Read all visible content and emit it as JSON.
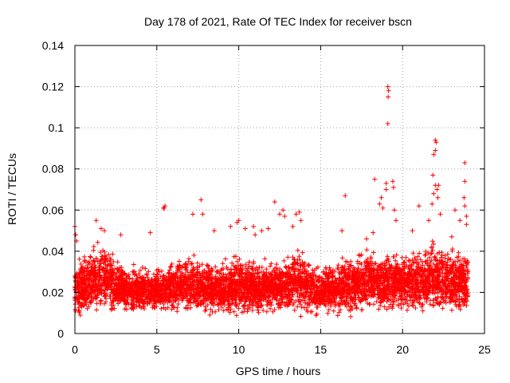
{
  "chart_data": {
    "type": "scatter",
    "title": "Day 178 of 2021, Rate Of TEC Index for receiver bscn",
    "xlabel": "GPS time / hours",
    "ylabel": "ROTI / TECUs",
    "xlim": [
      0,
      25
    ],
    "ylim": [
      0,
      0.14
    ],
    "grid": true,
    "marker": "+",
    "x_ticks": [
      {
        "value": 0,
        "label": "0"
      },
      {
        "value": 5,
        "label": "5"
      },
      {
        "value": 10,
        "label": "10"
      },
      {
        "value": 15,
        "label": "15"
      },
      {
        "value": 20,
        "label": "20"
      },
      {
        "value": 25,
        "label": "25"
      }
    ],
    "y_ticks": [
      {
        "value": 0,
        "label": "0"
      },
      {
        "value": 0.02,
        "label": "0.02"
      },
      {
        "value": 0.04,
        "label": "0.04"
      },
      {
        "value": 0.06,
        "label": "0.06"
      },
      {
        "value": 0.08,
        "label": "0.08"
      },
      {
        "value": 0.1,
        "label": "0.1"
      },
      {
        "value": 0.12,
        "label": "0.12"
      },
      {
        "value": 0.14,
        "label": "0.14"
      }
    ],
    "series": [
      {
        "name": "ROTI",
        "color": "#ff0000",
        "x_range": [
          0,
          24
        ],
        "band_profile": [
          {
            "x": 0.0,
            "low": 0.006,
            "high": 0.036
          },
          {
            "x": 1.0,
            "low": 0.007,
            "high": 0.044
          },
          {
            "x": 1.7,
            "low": 0.007,
            "high": 0.048
          },
          {
            "x": 3.0,
            "low": 0.008,
            "high": 0.034
          },
          {
            "x": 5.0,
            "low": 0.008,
            "high": 0.034
          },
          {
            "x": 7.0,
            "low": 0.008,
            "high": 0.04
          },
          {
            "x": 8.5,
            "low": 0.008,
            "high": 0.036
          },
          {
            "x": 10.0,
            "low": 0.007,
            "high": 0.04
          },
          {
            "x": 12.0,
            "low": 0.008,
            "high": 0.036
          },
          {
            "x": 13.7,
            "low": 0.007,
            "high": 0.044
          },
          {
            "x": 15.0,
            "low": 0.007,
            "high": 0.034
          },
          {
            "x": 16.5,
            "low": 0.007,
            "high": 0.04
          },
          {
            "x": 18.5,
            "low": 0.008,
            "high": 0.044
          },
          {
            "x": 20.0,
            "low": 0.008,
            "high": 0.04
          },
          {
            "x": 22.0,
            "low": 0.007,
            "high": 0.048
          },
          {
            "x": 24.0,
            "low": 0.006,
            "high": 0.042
          }
        ],
        "outliers": [
          {
            "x": 0.0,
            "y": 0.052
          },
          {
            "x": 0.05,
            "y": 0.048
          },
          {
            "x": 0.1,
            "y": 0.045
          },
          {
            "x": 1.3,
            "y": 0.055
          },
          {
            "x": 1.6,
            "y": 0.051
          },
          {
            "x": 1.8,
            "y": 0.05
          },
          {
            "x": 2.8,
            "y": 0.048
          },
          {
            "x": 4.6,
            "y": 0.049
          },
          {
            "x": 5.4,
            "y": 0.061
          },
          {
            "x": 5.5,
            "y": 0.062
          },
          {
            "x": 5.45,
            "y": 0.061
          },
          {
            "x": 7.2,
            "y": 0.058
          },
          {
            "x": 7.7,
            "y": 0.065
          },
          {
            "x": 7.8,
            "y": 0.058
          },
          {
            "x": 8.5,
            "y": 0.05
          },
          {
            "x": 9.5,
            "y": 0.052
          },
          {
            "x": 9.9,
            "y": 0.054
          },
          {
            "x": 10.0,
            "y": 0.055
          },
          {
            "x": 10.4,
            "y": 0.051
          },
          {
            "x": 10.9,
            "y": 0.052
          },
          {
            "x": 11.0,
            "y": 0.048
          },
          {
            "x": 11.4,
            "y": 0.05
          },
          {
            "x": 11.8,
            "y": 0.051
          },
          {
            "x": 12.2,
            "y": 0.064
          },
          {
            "x": 12.5,
            "y": 0.058
          },
          {
            "x": 12.7,
            "y": 0.06
          },
          {
            "x": 12.8,
            "y": 0.057
          },
          {
            "x": 13.5,
            "y": 0.058
          },
          {
            "x": 13.7,
            "y": 0.059
          },
          {
            "x": 13.3,
            "y": 0.052
          },
          {
            "x": 13.8,
            "y": 0.055
          },
          {
            "x": 16.3,
            "y": 0.05
          },
          {
            "x": 16.5,
            "y": 0.067
          },
          {
            "x": 17.8,
            "y": 0.046
          },
          {
            "x": 18.2,
            "y": 0.049
          },
          {
            "x": 18.3,
            "y": 0.075
          },
          {
            "x": 18.6,
            "y": 0.063
          },
          {
            "x": 18.7,
            "y": 0.066
          },
          {
            "x": 18.8,
            "y": 0.061
          },
          {
            "x": 19.0,
            "y": 0.073
          },
          {
            "x": 19.0,
            "y": 0.07
          },
          {
            "x": 19.1,
            "y": 0.12
          },
          {
            "x": 19.15,
            "y": 0.118
          },
          {
            "x": 19.12,
            "y": 0.115
          },
          {
            "x": 19.1,
            "y": 0.102
          },
          {
            "x": 19.4,
            "y": 0.074
          },
          {
            "x": 19.45,
            "y": 0.071
          },
          {
            "x": 19.5,
            "y": 0.06
          },
          {
            "x": 19.6,
            "y": 0.055
          },
          {
            "x": 20.6,
            "y": 0.05
          },
          {
            "x": 21.0,
            "y": 0.062
          },
          {
            "x": 21.6,
            "y": 0.055
          },
          {
            "x": 21.8,
            "y": 0.063
          },
          {
            "x": 21.85,
            "y": 0.077
          },
          {
            "x": 21.9,
            "y": 0.087
          },
          {
            "x": 22.0,
            "y": 0.089
          },
          {
            "x": 22.05,
            "y": 0.093
          },
          {
            "x": 22.0,
            "y": 0.094
          },
          {
            "x": 22.0,
            "y": 0.072
          },
          {
            "x": 22.1,
            "y": 0.07
          },
          {
            "x": 22.2,
            "y": 0.072
          },
          {
            "x": 21.9,
            "y": 0.068
          },
          {
            "x": 22.15,
            "y": 0.066
          },
          {
            "x": 22.3,
            "y": 0.058
          },
          {
            "x": 23.0,
            "y": 0.047
          },
          {
            "x": 23.2,
            "y": 0.06
          },
          {
            "x": 23.5,
            "y": 0.055
          },
          {
            "x": 23.8,
            "y": 0.083
          },
          {
            "x": 23.8,
            "y": 0.074
          },
          {
            "x": 23.75,
            "y": 0.066
          },
          {
            "x": 23.8,
            "y": 0.062
          },
          {
            "x": 23.9,
            "y": 0.057
          },
          {
            "x": 23.9,
            "y": 0.053
          }
        ]
      }
    ]
  }
}
